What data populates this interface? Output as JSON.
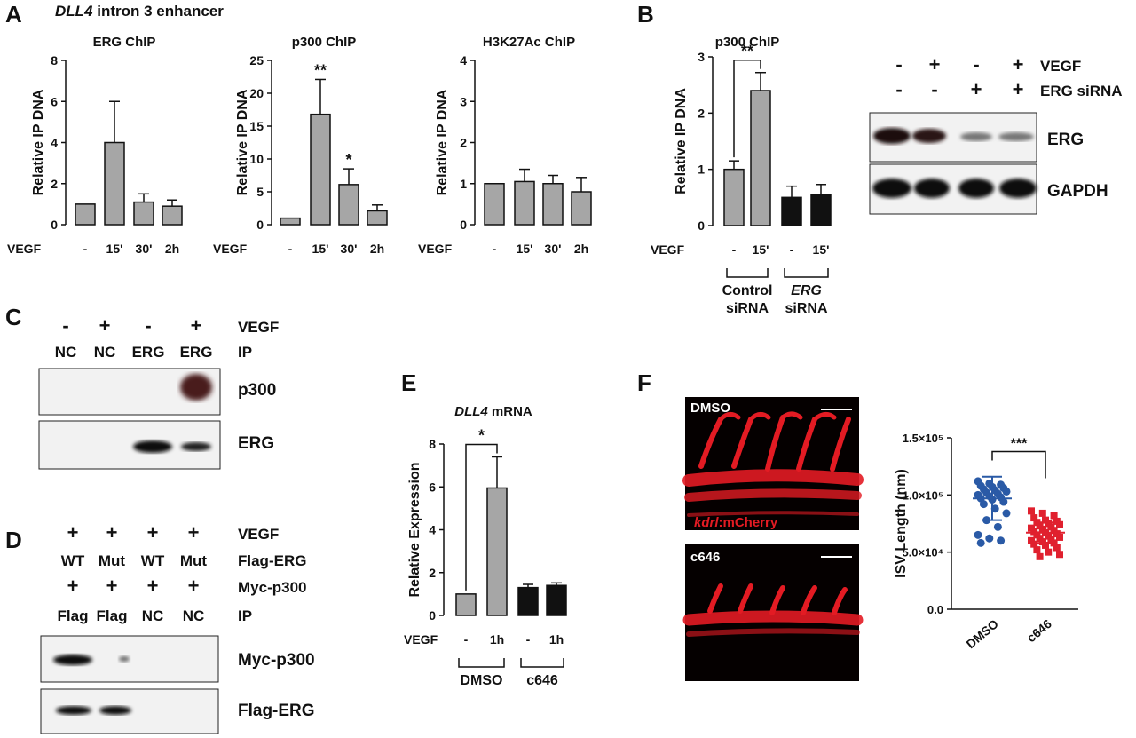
{
  "panels": {
    "a": "A",
    "b": "B",
    "c": "C",
    "d": "D",
    "e": "E",
    "f": "F"
  },
  "panel_a_title": {
    "gene": "DLL4",
    "rest": "intron 3 enhancer"
  },
  "chart_data": [
    {
      "id": "a1",
      "type": "bar",
      "title": "ERG ChIP",
      "ylabel": "Relative IP DNA",
      "xlabel": "VEGF",
      "categories": [
        "-",
        "15'",
        "30'",
        "2h"
      ],
      "values": [
        1,
        4,
        1.1,
        0.9
      ],
      "errors": [
        0,
        2,
        0.4,
        0.3
      ],
      "ylim": [
        0,
        8
      ],
      "yticks": [
        "0",
        "2",
        "4",
        "6",
        "8"
      ],
      "sig": [
        {
          "cat": 1,
          "text": ""
        }
      ]
    },
    {
      "id": "a2",
      "type": "bar",
      "title": "p300 ChIP",
      "ylabel": "Relative IP DNA",
      "xlabel": "VEGF",
      "categories": [
        "-",
        "15'",
        "30'",
        "2h"
      ],
      "values": [
        1,
        16.8,
        6.1,
        2.1
      ],
      "errors": [
        0,
        5.3,
        2.4,
        0.9
      ],
      "ylim": [
        0,
        25
      ],
      "yticks": [
        "0",
        "5",
        "10",
        "15",
        "20",
        "25"
      ],
      "sig": [
        {
          "cat": 1,
          "text": "**"
        },
        {
          "cat": 2,
          "text": "*"
        }
      ]
    },
    {
      "id": "a3",
      "type": "bar",
      "title": "H3K27Ac ChIP",
      "ylabel": "Relative IP DNA",
      "xlabel": "VEGF",
      "categories": [
        "-",
        "15'",
        "30'",
        "2h"
      ],
      "values": [
        1,
        1.05,
        1,
        0.8
      ],
      "errors": [
        0,
        0.3,
        0.2,
        0.35
      ],
      "ylim": [
        0,
        4
      ],
      "yticks": [
        "0",
        "1",
        "2",
        "3",
        "4"
      ],
      "sig": []
    },
    {
      "id": "b",
      "type": "bar",
      "title": "p300 ChIP",
      "ylabel": "Relative IP DNA",
      "xlabel": "VEGF",
      "categories": [
        "-",
        "15'",
        "-",
        "15'"
      ],
      "values": [
        1,
        2.4,
        0.5,
        0.55
      ],
      "errors": [
        0.15,
        0.32,
        0.2,
        0.18
      ],
      "colors": [
        "#a6a6a6",
        "#a6a6a6",
        "#111111",
        "#111111"
      ],
      "ylim": [
        0,
        3
      ],
      "yticks": [
        "0",
        "1",
        "2",
        "3"
      ],
      "bracket": {
        "from": 0,
        "to": 1,
        "text": "**"
      },
      "groups": [
        {
          "line1": "Control",
          "line2": "siRNA"
        },
        {
          "line1": "ERG",
          "line2": "siRNA"
        }
      ]
    },
    {
      "id": "e",
      "type": "bar",
      "title": "DLL4 mRNA",
      "ylabel": "Relative Expression",
      "xlabel": "VEGF",
      "categories": [
        "-",
        "1h",
        "-",
        "1h"
      ],
      "values": [
        1,
        5.95,
        1.3,
        1.4
      ],
      "errors": [
        0,
        1.45,
        0.15,
        0.12
      ],
      "colors": [
        "#a6a6a6",
        "#a6a6a6",
        "#111111",
        "#111111"
      ],
      "ylim": [
        0,
        8
      ],
      "yticks": [
        "0",
        "2",
        "4",
        "6",
        "8"
      ],
      "bracket": {
        "from": 0,
        "to": 1,
        "text": "*"
      },
      "groups": [
        {
          "line1": "DMSO"
        },
        {
          "line1": "c646"
        }
      ]
    },
    {
      "id": "f",
      "type": "scatter",
      "ylabel": "ISV Length (nm)",
      "categories": [
        "DMSO",
        "c646"
      ],
      "yticks": [
        "0.0",
        "5.0×10⁴",
        "1.0×10⁵",
        "1.5×10⁵"
      ],
      "ylim": [
        0,
        150000
      ],
      "series": [
        {
          "color": "#2a5aa6",
          "mean": 97000,
          "sd": 19000,
          "values": [
            112000,
            110000,
            109000,
            108000,
            107000,
            106000,
            105000,
            104000,
            103000,
            102000,
            101000,
            100000,
            99000,
            98000,
            97000,
            96000,
            94000,
            92000,
            88000,
            84000,
            78000,
            72000,
            65000,
            62000,
            60000,
            58000
          ]
        },
        {
          "color": "#e0202e",
          "mean": 67000,
          "sd": 9000,
          "values": [
            86000,
            84000,
            82000,
            80000,
            78000,
            77000,
            76000,
            75000,
            74000,
            73000,
            72000,
            71000,
            70000,
            69000,
            68000,
            67000,
            66000,
            65000,
            64000,
            63000,
            62000,
            61000,
            60000,
            59000,
            58000,
            57000,
            56000,
            54000,
            52000,
            50000,
            48000,
            46000
          ]
        }
      ],
      "bracket": {
        "text": "***"
      }
    }
  ],
  "blot_b": {
    "vegf": [
      "-",
      "+",
      "-",
      "+"
    ],
    "sirna": [
      "-",
      "-",
      "+",
      "+"
    ],
    "row_labels": {
      "vegf": "VEGF",
      "sirna": "ERG siRNA"
    },
    "bands": [
      "ERG",
      "GAPDH"
    ]
  },
  "blot_c": {
    "vegf": [
      "-",
      "+",
      "-",
      "+"
    ],
    "ip": [
      "NC",
      "NC",
      "ERG",
      "ERG"
    ],
    "row_labels": {
      "vegf": "VEGF",
      "ip": "IP"
    },
    "bands": [
      "p300",
      "ERG"
    ]
  },
  "blot_d": {
    "vegf": [
      "+",
      "+",
      "+",
      "+"
    ],
    "flag": [
      "WT",
      "Mut",
      "WT",
      "Mut"
    ],
    "myc": [
      "+",
      "+",
      "+",
      "+"
    ],
    "ip": [
      "Flag",
      "Flag",
      "NC",
      "NC"
    ],
    "row_labels": {
      "vegf": "VEGF",
      "flag": "Flag-ERG",
      "myc": "Myc-p300",
      "ip": "IP"
    },
    "bands": [
      "Myc-p300",
      "Flag-ERG"
    ]
  },
  "images_f": {
    "top_label": "DMSO",
    "top_caption_italic": "kdrl",
    "top_caption_rest": ":mCherry",
    "bottom_label": "c646"
  }
}
